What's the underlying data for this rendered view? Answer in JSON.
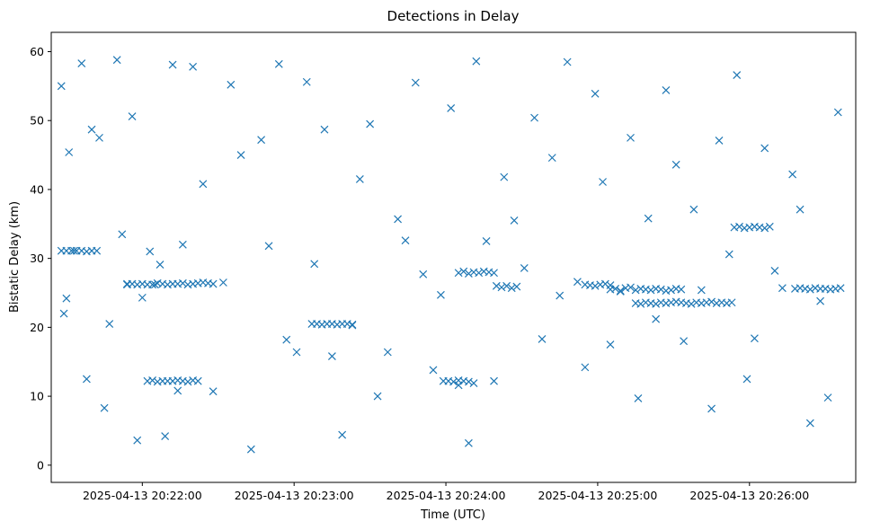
{
  "chart_data": {
    "type": "scatter",
    "title": "Detections in Delay",
    "xlabel": "Time (UTC)",
    "ylabel": "Bistatic Delay (km)",
    "xlim": [
      "2025-04-13 20:21:24",
      "2025-04-13 20:26:42"
    ],
    "ylim": [
      -2.5,
      62.8
    ],
    "x_ticks": [
      "2025-04-13 20:22:00",
      "2025-04-13 20:23:00",
      "2025-04-13 20:24:00",
      "2025-04-13 20:25:00",
      "2025-04-13 20:26:00"
    ],
    "y_ticks": [
      0,
      10,
      20,
      30,
      40,
      50,
      60
    ],
    "grid": false,
    "legend": "none",
    "marker": "x",
    "color": "#1f77b4",
    "series": [
      {
        "x": [
          "20:21:28",
          "20:21:29",
          "20:21:30",
          "20:21:31",
          "20:21:33",
          "20:21:36",
          "20:21:38",
          "20:21:40",
          "20:21:43",
          "20:21:45",
          "20:21:47",
          "20:21:50",
          "20:21:52",
          "20:21:54",
          "20:21:56",
          "20:21:58",
          "20:22:00",
          "20:22:03",
          "20:22:05",
          "20:22:07",
          "20:22:09",
          "20:22:12",
          "20:22:14",
          "20:22:16",
          "20:22:20",
          "20:22:24",
          "20:22:28",
          "20:22:32",
          "20:22:35",
          "20:22:39",
          "20:22:43",
          "20:22:47",
          "20:22:50",
          "20:22:54",
          "20:22:57",
          "20:23:01",
          "20:23:05",
          "20:23:08",
          "20:23:12",
          "20:23:15",
          "20:23:19",
          "20:23:23",
          "20:23:26",
          "20:23:30",
          "20:23:33",
          "20:23:37",
          "20:23:41",
          "20:23:44",
          "20:23:48",
          "20:23:51",
          "20:23:55",
          "20:23:58",
          "20:24:02",
          "20:24:05",
          "20:24:09",
          "20:24:12",
          "20:24:16",
          "20:24:19",
          "20:24:23",
          "20:24:27",
          "20:24:31",
          "20:24:35",
          "20:24:38",
          "20:24:42",
          "20:24:45",
          "20:24:48",
          "20:24:52",
          "20:24:55",
          "20:24:59",
          "20:25:02",
          "20:25:05",
          "20:25:09",
          "20:25:13",
          "20:25:16",
          "20:25:20",
          "20:25:23",
          "20:25:27",
          "20:25:31",
          "20:25:34",
          "20:25:38",
          "20:25:41",
          "20:25:45",
          "20:25:48",
          "20:25:52",
          "20:25:55",
          "20:25:59",
          "20:26:02",
          "20:26:06",
          "20:26:10",
          "20:26:13",
          "20:26:17",
          "20:26:20",
          "20:26:24",
          "20:26:28",
          "20:26:31",
          "20:26:35",
          "20:21:28",
          "20:21:30",
          "20:21:32",
          "20:21:34",
          "20:21:36",
          "20:21:38",
          "20:21:40",
          "20:21:42",
          "20:21:54",
          "20:21:56",
          "20:21:58",
          "20:22:00",
          "20:22:02",
          "20:22:04",
          "20:22:06",
          "20:22:08",
          "20:22:10",
          "20:22:12",
          "20:22:14",
          "20:22:16",
          "20:22:18",
          "20:22:20",
          "20:22:22",
          "20:22:24",
          "20:22:26",
          "20:22:28",
          "20:22:02",
          "20:22:04",
          "20:22:06",
          "20:22:08",
          "20:22:10",
          "20:22:12",
          "20:22:14",
          "20:22:16",
          "20:22:18",
          "20:22:20",
          "20:22:22",
          "20:23:07",
          "20:23:09",
          "20:23:11",
          "20:23:13",
          "20:23:15",
          "20:23:17",
          "20:23:19",
          "20:23:21",
          "20:23:23",
          "20:23:59",
          "20:24:01",
          "20:24:03",
          "20:24:05",
          "20:24:07",
          "20:24:09",
          "20:24:11",
          "20:24:05",
          "20:24:07",
          "20:24:09",
          "20:24:11",
          "20:24:13",
          "20:24:15",
          "20:24:17",
          "20:24:19",
          "20:24:20",
          "20:24:22",
          "20:24:24",
          "20:24:26",
          "20:24:28",
          "20:24:55",
          "20:24:57",
          "20:24:59",
          "20:25:01",
          "20:25:03",
          "20:25:05",
          "20:25:05",
          "20:25:07",
          "20:25:09",
          "20:25:11",
          "20:25:13",
          "20:25:15",
          "20:25:17",
          "20:25:19",
          "20:25:21",
          "20:25:23",
          "20:25:25",
          "20:25:27",
          "20:25:29",
          "20:25:31",
          "20:25:33",
          "20:25:15",
          "20:25:17",
          "20:25:19",
          "20:25:21",
          "20:25:23",
          "20:25:25",
          "20:25:27",
          "20:25:29",
          "20:25:31",
          "20:25:33",
          "20:25:35",
          "20:25:37",
          "20:25:39",
          "20:25:41",
          "20:25:43",
          "20:25:45",
          "20:25:47",
          "20:25:49",
          "20:25:51",
          "20:25:53",
          "20:25:54",
          "20:25:56",
          "20:25:58",
          "20:26:00",
          "20:26:02",
          "20:26:04",
          "20:26:06",
          "20:26:08",
          "20:26:18",
          "20:26:20",
          "20:26:22",
          "20:26:24",
          "20:26:26",
          "20:26:28",
          "20:26:30",
          "20:26:32",
          "20:26:34",
          "20:26:36"
        ],
        "y": [
          55.0,
          22.0,
          24.2,
          45.4,
          31.1,
          58.3,
          12.5,
          48.7,
          47.5,
          8.3,
          20.5,
          58.8,
          33.5,
          26.3,
          50.6,
          3.6,
          24.3,
          31.0,
          26.2,
          29.1,
          4.2,
          58.1,
          10.8,
          32.0,
          57.8,
          40.8,
          10.7,
          26.5,
          55.2,
          45.0,
          2.3,
          47.2,
          31.8,
          58.2,
          18.2,
          16.4,
          55.6,
          29.2,
          48.7,
          15.8,
          4.4,
          20.3,
          41.5,
          49.5,
          10.0,
          16.4,
          35.7,
          32.6,
          55.5,
          27.7,
          13.8,
          24.7,
          51.8,
          11.6,
          3.2,
          58.6,
          32.5,
          12.2,
          41.8,
          35.5,
          28.6,
          50.4,
          18.3,
          44.6,
          24.6,
          58.5,
          26.6,
          14.2,
          53.9,
          41.1,
          17.5,
          25.2,
          47.5,
          9.7,
          35.8,
          21.2,
          54.4,
          43.6,
          18.0,
          37.1,
          25.4,
          8.2,
          47.1,
          30.6,
          56.6,
          12.5,
          18.4,
          46.0,
          28.2,
          25.7,
          42.2,
          37.1,
          6.1,
          23.8,
          9.8,
          51.2,
          31.1,
          31.1,
          31.1,
          31.1,
          31.1,
          31.0,
          31.1,
          31.1,
          26.2,
          26.3,
          26.2,
          26.3,
          26.2,
          26.2,
          26.4,
          26.3,
          26.2,
          26.3,
          26.3,
          26.4,
          26.2,
          26.3,
          26.4,
          26.5,
          26.4,
          26.3,
          12.2,
          12.3,
          12.1,
          12.2,
          12.2,
          12.2,
          12.3,
          12.2,
          12.1,
          12.3,
          12.2,
          20.5,
          20.5,
          20.4,
          20.5,
          20.5,
          20.4,
          20.5,
          20.5,
          20.4,
          12.2,
          12.2,
          12.1,
          12.3,
          12.2,
          12.1,
          11.9,
          27.9,
          28.1,
          27.8,
          28.0,
          27.9,
          28.1,
          28.0,
          27.9,
          26.0,
          25.8,
          26.0,
          25.7,
          25.9,
          26.2,
          26.1,
          26.0,
          26.2,
          26.3,
          26.1,
          25.5,
          25.6,
          25.3,
          25.7,
          25.8,
          25.4,
          25.6,
          25.5,
          25.4,
          25.6,
          25.5,
          25.3,
          25.4,
          25.6,
          25.5,
          23.5,
          23.4,
          23.6,
          23.5,
          23.4,
          23.6,
          23.5,
          23.6,
          23.7,
          23.6,
          23.5,
          23.4,
          23.6,
          23.5,
          23.6,
          23.7,
          23.5,
          23.6,
          23.5,
          23.6,
          34.5,
          34.6,
          34.4,
          34.5,
          34.6,
          34.5,
          34.4,
          34.6,
          25.6,
          25.7,
          25.6,
          25.5,
          25.7,
          25.6,
          25.6,
          25.5,
          25.6,
          25.7
        ]
      }
    ]
  }
}
